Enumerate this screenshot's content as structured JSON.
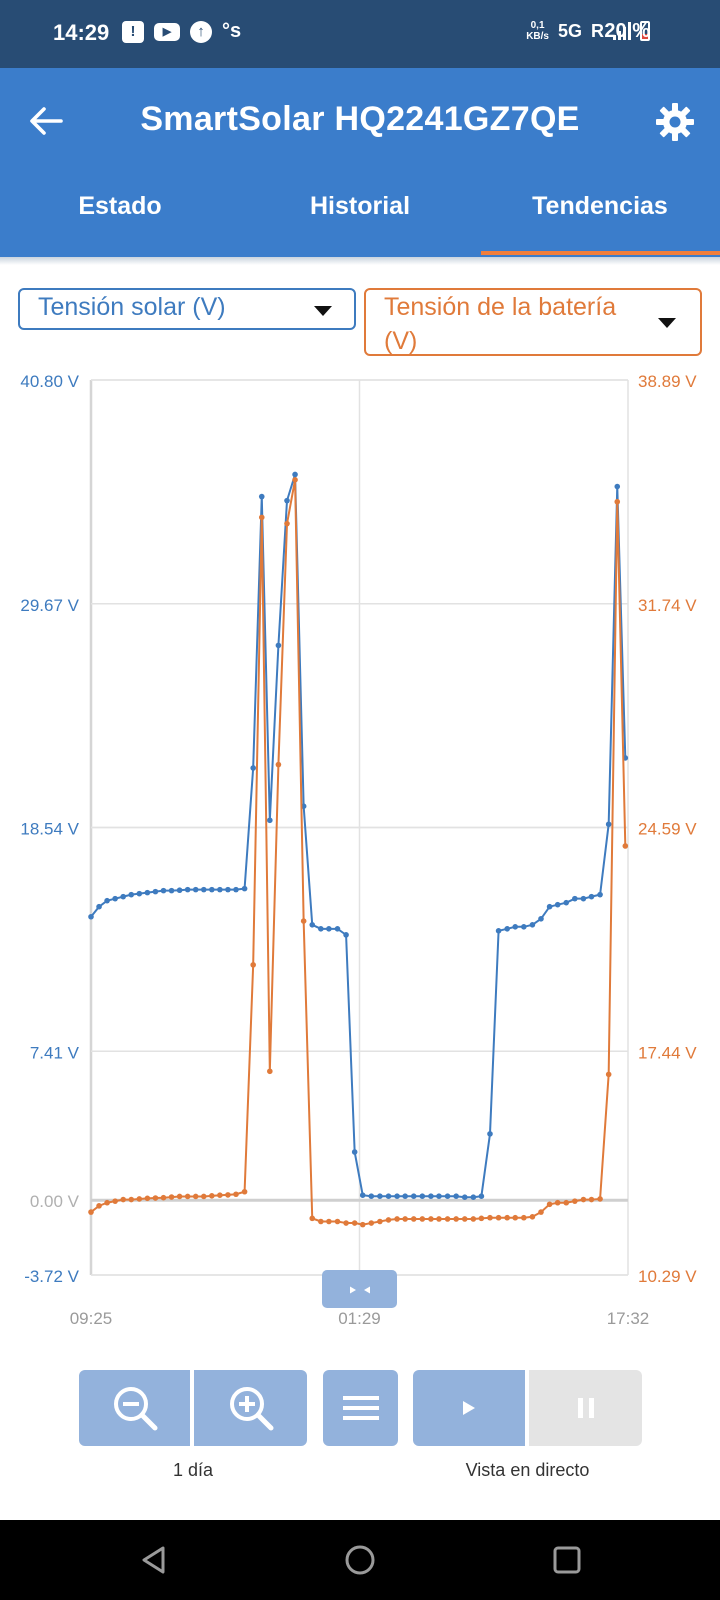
{
  "status_bar": {
    "time": "14:29",
    "notification_icons": [
      "battery-alert-icon",
      "youtube-icon",
      "upload-icon",
      "s-app-icon"
    ],
    "s_label": "°s",
    "net_speed_value": "0,1",
    "net_speed_unit": "KB/s",
    "network": "5G",
    "roaming": "R",
    "battery_percent": "20 %"
  },
  "app_bar": {
    "title": "SmartSolar HQ2241GZ7QE",
    "back_icon": "arrow-left-icon",
    "settings_icon": "gear-icon",
    "accent_color": "#3b7dcb",
    "tab_indicator_color": "#f07e3c",
    "tabs": [
      {
        "label": "Estado",
        "active": false
      },
      {
        "label": "Historial",
        "active": false
      },
      {
        "label": "Tendencias",
        "active": true
      }
    ]
  },
  "selectors": {
    "left": {
      "value": "Tensión solar (V)",
      "color": "#3e7bbf"
    },
    "right": {
      "value": "Tensión de la batería (V)",
      "color": "#e07a3a"
    }
  },
  "chart_data": {
    "type": "line",
    "x_ticks": [
      "09:25",
      "01:29",
      "17:32"
    ],
    "y_left_ticks": [
      "40.80 V",
      "29.67 V",
      "18.54 V",
      "7.41 V",
      "0.00 V",
      "-3.72 V"
    ],
    "y_right_ticks": [
      "38.89 V",
      "31.74 V",
      "24.59 V",
      "17.44 V",
      "10.29 V"
    ],
    "y_left_range": [
      -3.72,
      40.8
    ],
    "y_right_range": [
      10.29,
      38.89
    ],
    "x_range": [
      0,
      100
    ],
    "grid": true,
    "series": [
      {
        "axis": "left",
        "color": "#3e7bbf",
        "points": [
          [
            0,
            14.1
          ],
          [
            1.5,
            14.6
          ],
          [
            3,
            14.9
          ],
          [
            4.5,
            15.0
          ],
          [
            6,
            15.1
          ],
          [
            7.5,
            15.2
          ],
          [
            9,
            15.25
          ],
          [
            10.5,
            15.3
          ],
          [
            12,
            15.35
          ],
          [
            13.5,
            15.4
          ],
          [
            15,
            15.4
          ],
          [
            16.5,
            15.42
          ],
          [
            18,
            15.45
          ],
          [
            19.5,
            15.45
          ],
          [
            21,
            15.45
          ],
          [
            22.5,
            15.45
          ],
          [
            24,
            15.45
          ],
          [
            25.5,
            15.45
          ],
          [
            27,
            15.45
          ],
          [
            28.6,
            15.5
          ],
          [
            30.2,
            21.5
          ],
          [
            31.8,
            35.0
          ],
          [
            33.3,
            18.9
          ],
          [
            34.9,
            27.6
          ],
          [
            36.5,
            34.8
          ],
          [
            38,
            36.1
          ],
          [
            39.6,
            19.6
          ],
          [
            41.2,
            13.7
          ],
          [
            42.8,
            13.5
          ],
          [
            44.3,
            13.5
          ],
          [
            45.9,
            13.5
          ],
          [
            47.5,
            13.2
          ],
          [
            49.1,
            2.4
          ],
          [
            50.6,
            0.25
          ],
          [
            52.2,
            0.2
          ],
          [
            53.8,
            0.2
          ],
          [
            55.4,
            0.2
          ],
          [
            57,
            0.2
          ],
          [
            58.5,
            0.2
          ],
          [
            60.1,
            0.2
          ],
          [
            61.7,
            0.2
          ],
          [
            63.3,
            0.2
          ],
          [
            64.8,
            0.2
          ],
          [
            66.4,
            0.2
          ],
          [
            68,
            0.2
          ],
          [
            69.6,
            0.15
          ],
          [
            71.2,
            0.15
          ],
          [
            72.7,
            0.2
          ],
          [
            74.3,
            3.3
          ],
          [
            75.9,
            13.4
          ],
          [
            77.5,
            13.5
          ],
          [
            79,
            13.6
          ],
          [
            80.6,
            13.6
          ],
          [
            82.2,
            13.7
          ],
          [
            83.8,
            14.0
          ],
          [
            85.4,
            14.6
          ],
          [
            86.9,
            14.7
          ],
          [
            88.5,
            14.8
          ],
          [
            90.1,
            15.0
          ],
          [
            91.7,
            15.0
          ],
          [
            93.2,
            15.1
          ],
          [
            94.8,
            15.2
          ],
          [
            96.4,
            18.7
          ],
          [
            98,
            35.5
          ],
          [
            99.5,
            22.0
          ]
        ],
        "tail": [
          [
            99.5,
            22.0
          ]
        ]
      },
      {
        "axis": "right",
        "color": "#e07a3a",
        "points": [
          [
            0,
            12.3
          ],
          [
            1.5,
            12.5
          ],
          [
            3,
            12.6
          ],
          [
            4.5,
            12.65
          ],
          [
            6,
            12.7
          ],
          [
            7.5,
            12.7
          ],
          [
            9,
            12.72
          ],
          [
            10.5,
            12.74
          ],
          [
            12,
            12.75
          ],
          [
            13.5,
            12.76
          ],
          [
            15,
            12.78
          ],
          [
            16.5,
            12.8
          ],
          [
            18,
            12.8
          ],
          [
            19.5,
            12.8
          ],
          [
            21,
            12.8
          ],
          [
            22.5,
            12.82
          ],
          [
            24,
            12.84
          ],
          [
            25.5,
            12.85
          ],
          [
            27,
            12.87
          ],
          [
            28.6,
            12.95
          ],
          [
            30.2,
            20.2
          ],
          [
            31.8,
            34.5
          ],
          [
            33.3,
            16.8
          ],
          [
            34.9,
            26.6
          ],
          [
            36.5,
            34.3
          ],
          [
            38,
            35.7
          ],
          [
            39.6,
            21.6
          ],
          [
            41.2,
            12.1
          ],
          [
            42.8,
            12.0
          ],
          [
            44.3,
            12.0
          ],
          [
            45.9,
            12.0
          ],
          [
            47.5,
            11.95
          ],
          [
            49.1,
            11.95
          ],
          [
            50.6,
            11.9
          ],
          [
            52.2,
            11.95
          ],
          [
            53.8,
            12.0
          ],
          [
            55.4,
            12.05
          ],
          [
            57,
            12.08
          ],
          [
            58.5,
            12.08
          ],
          [
            60.1,
            12.08
          ],
          [
            61.7,
            12.08
          ],
          [
            63.3,
            12.08
          ],
          [
            64.8,
            12.08
          ],
          [
            66.4,
            12.08
          ],
          [
            68,
            12.08
          ],
          [
            69.6,
            12.08
          ],
          [
            71.2,
            12.08
          ],
          [
            72.7,
            12.1
          ],
          [
            74.3,
            12.12
          ],
          [
            75.9,
            12.12
          ],
          [
            77.5,
            12.12
          ],
          [
            79,
            12.12
          ],
          [
            80.6,
            12.12
          ],
          [
            82.2,
            12.15
          ],
          [
            83.8,
            12.3
          ],
          [
            85.4,
            12.55
          ],
          [
            86.9,
            12.6
          ],
          [
            88.5,
            12.6
          ],
          [
            90.1,
            12.65
          ],
          [
            91.7,
            12.7
          ],
          [
            93.2,
            12.7
          ],
          [
            94.8,
            12.72
          ],
          [
            96.4,
            16.7
          ],
          [
            98,
            35.0
          ],
          [
            99.5,
            24.0
          ]
        ]
      }
    ]
  },
  "controls": {
    "zoom_label": "1 día",
    "live_label": "Vista en directo",
    "zoom_out_icon": "zoom-out-icon",
    "zoom_in_icon": "zoom-in-icon",
    "menu_icon": "menu-icon",
    "play_icon": "play-icon",
    "pause_icon": "pause-icon",
    "pan_icon": "pan-arrows-icon"
  },
  "nav_bar": {
    "icons": [
      "back-triangle-icon",
      "home-circle-icon",
      "recents-square-icon"
    ]
  }
}
